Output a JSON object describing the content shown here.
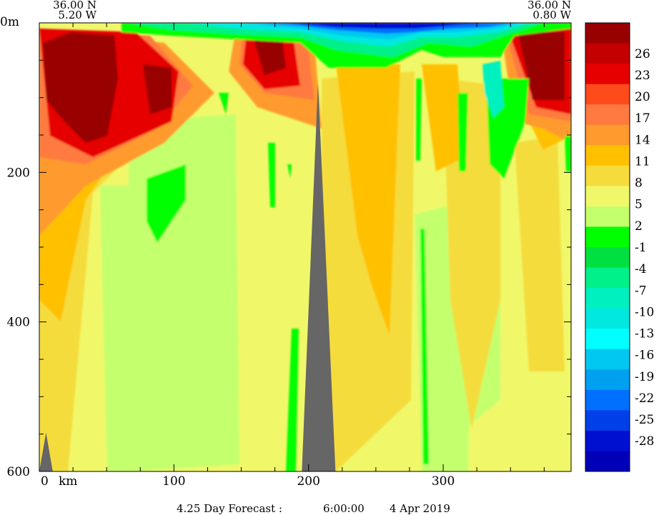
{
  "header": {
    "left_lat": "36.00 N",
    "left_lon": "5.20 W",
    "right_lat": "36.00 N",
    "right_lon": "0.80 W"
  },
  "footer": {
    "forecast": "4.25 Day Forecast :",
    "time": "6:00:00",
    "date": "4 Apr 2019"
  },
  "chart_data": {
    "type": "heatmap",
    "title": "",
    "xlabel": "km",
    "ylabel": "m",
    "x_unit_label": "km",
    "y_top_label": "0m",
    "x_ticks": [
      0,
      100,
      200,
      300
    ],
    "x_tick_labels": [
      "0",
      "100",
      "200",
      "300"
    ],
    "y_ticks": [
      0,
      200,
      400,
      600
    ],
    "y_tick_labels": [
      "0m",
      "200",
      "400",
      "600"
    ],
    "xlim": [
      0,
      395
    ],
    "ylim": [
      600,
      0
    ],
    "colorbar": {
      "labels": [
        "26",
        "23",
        "20",
        "17",
        "14",
        "11",
        "8",
        "5",
        "2",
        "-1",
        "-4",
        "-7",
        "-10",
        "-13",
        "-16",
        "-19",
        "-22",
        "-25",
        "-28"
      ],
      "colors": [
        "#990000",
        "#c40000",
        "#e60000",
        "#ff4a1c",
        "#ff7a40",
        "#ff9a2e",
        "#ffc000",
        "#f5dc3c",
        "#f0f86a",
        "#c4ff6e",
        "#00ff00",
        "#00e040",
        "#00f08a",
        "#00f0c0",
        "#00e8e0",
        "#00ffff",
        "#00c8f0",
        "#00a0f0",
        "#0070ff",
        "#0040e8",
        "#0010d0",
        "#0000b8"
      ]
    },
    "grid": false,
    "bottom_topography": [
      {
        "x": 0,
        "depth": 600
      },
      {
        "x": 5,
        "depth": 548
      },
      {
        "x": 10,
        "depth": 600
      },
      {
        "x": 195,
        "depth": 600
      },
      {
        "x": 207,
        "depth": 80
      },
      {
        "x": 220,
        "depth": 600
      }
    ]
  }
}
